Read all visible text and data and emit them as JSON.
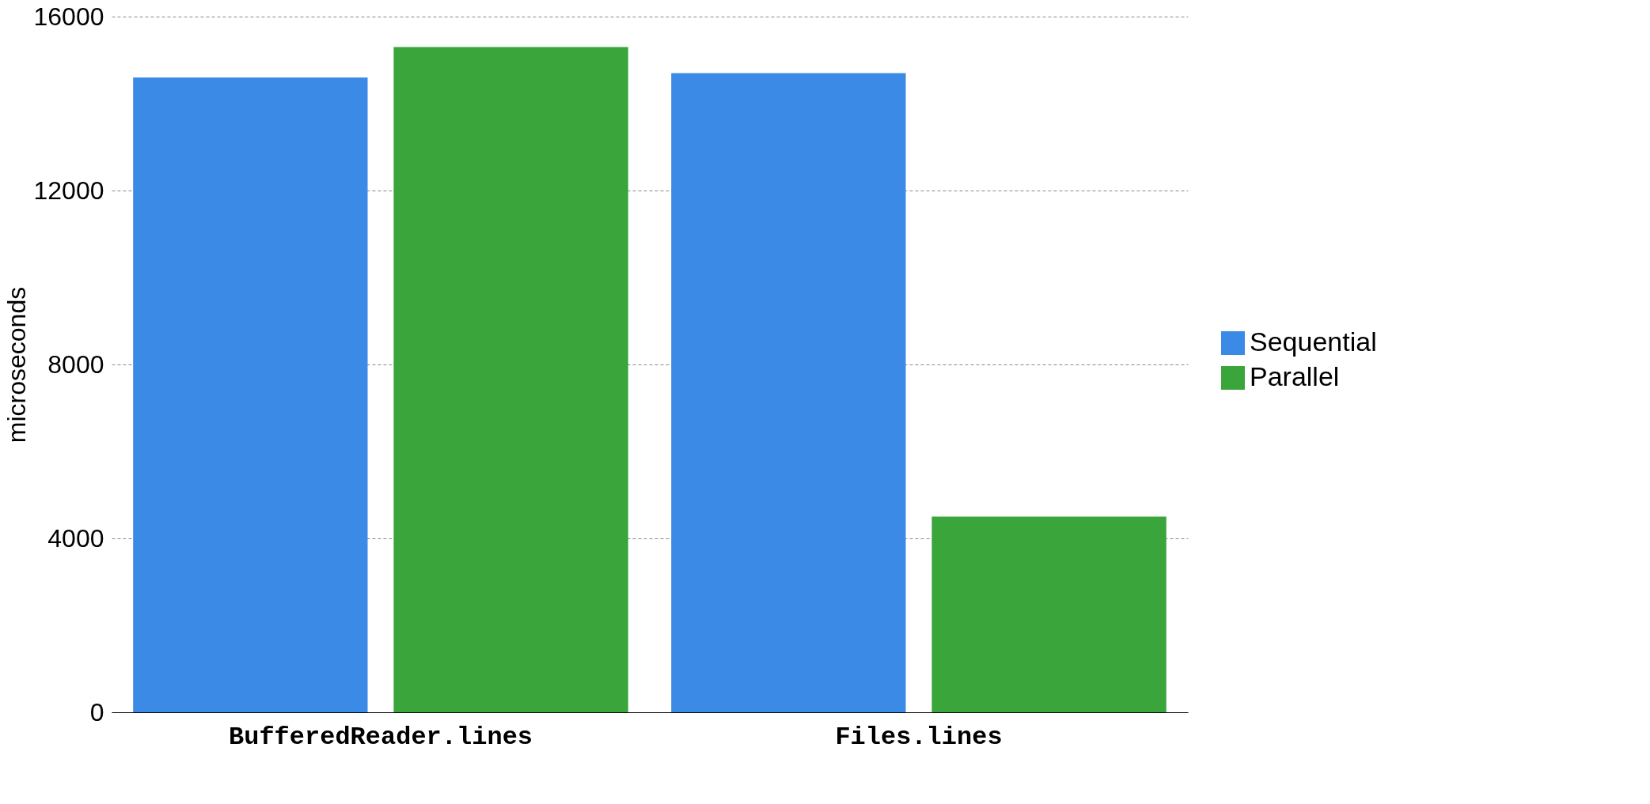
{
  "chart_data": {
    "type": "bar",
    "ylabel": "microseconds",
    "categories": [
      "BufferedReader.lines",
      "Files.lines"
    ],
    "series": [
      {
        "name": "Sequential",
        "color": "#3a8ae6",
        "values": [
          14600,
          14700
        ]
      },
      {
        "name": "Parallel",
        "color": "#3aa53a",
        "values": [
          15300,
          4500
        ]
      }
    ],
    "ylim": [
      0,
      16000
    ],
    "yticks": [
      0,
      4000,
      8000,
      12000,
      16000
    ],
    "grid": "y",
    "legend": "right"
  }
}
